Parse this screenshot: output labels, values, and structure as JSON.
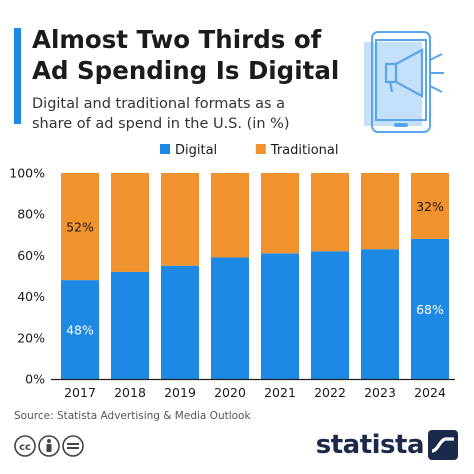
{
  "header": {
    "title_line1": "Almost Two Thirds of",
    "title_line2": "Ad Spending Is Digital",
    "subtitle_line1": "Digital and traditional formats as a",
    "subtitle_line2": "share of ad spend in the U.S. (in %)"
  },
  "colors": {
    "digital": "#1e88e5",
    "traditional": "#f0922d",
    "accent": "#1e88e5",
    "illustration": "#5aa6ee"
  },
  "chart_data": {
    "type": "bar",
    "stacked": true,
    "categories": [
      "2017",
      "2018",
      "2019",
      "2020",
      "2021",
      "2022",
      "2023",
      "2024"
    ],
    "series": [
      {
        "name": "Digital",
        "values": [
          48,
          52,
          55,
          59,
          61,
          62,
          63,
          68
        ]
      },
      {
        "name": "Traditional",
        "values": [
          52,
          48,
          45,
          41,
          39,
          38,
          37,
          32
        ]
      }
    ],
    "data_labels": [
      {
        "series": "Digital",
        "category": "2017",
        "text": "48%"
      },
      {
        "series": "Traditional",
        "category": "2017",
        "text": "52%"
      },
      {
        "series": "Digital",
        "category": "2024",
        "text": "68%"
      },
      {
        "series": "Traditional",
        "category": "2024",
        "text": "32%"
      }
    ],
    "yticks": [
      "0%",
      "20%",
      "40%",
      "60%",
      "80%",
      "100%"
    ],
    "ylim": [
      0,
      100
    ],
    "legend_position": "top-center",
    "grid": false
  },
  "footer": {
    "source": "Source: Statista Advertising & Media Outlook",
    "brand": "statista",
    "license_icons": [
      "creative-commons-icon",
      "attribution-icon",
      "no-derivatives-icon"
    ]
  }
}
